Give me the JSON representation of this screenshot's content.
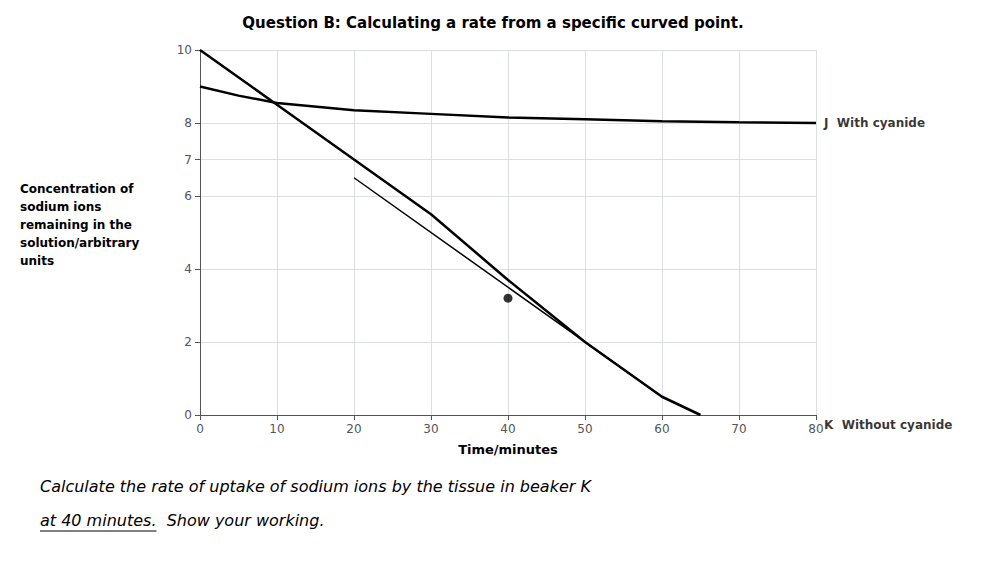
{
  "chart_data": {
    "type": "line",
    "title": "Question B: Calculating a rate from a specific curved point.",
    "ylabel": "Concentration of\nsodium ions\nremaining in the\nsolution/arbitrary\nunits",
    "xlabel": "Time/minutes",
    "xlim": [
      0,
      80
    ],
    "ylim": [
      0,
      10
    ],
    "xticks": [
      0,
      10,
      20,
      30,
      40,
      50,
      60,
      70,
      80
    ],
    "yticks": [
      0,
      2,
      4,
      6,
      7,
      8,
      10
    ],
    "grid": true,
    "series": [
      {
        "type": "line",
        "color": "#000000",
        "x": [
          0,
          5,
          10,
          20,
          30,
          40,
          50,
          60,
          70,
          80
        ],
        "values": [
          9.0,
          8.75,
          8.55,
          8.35,
          8.25,
          8.15,
          8.1,
          8.05,
          8.02,
          8.0
        ]
      },
      {
        "type": "line",
        "color": "#000000",
        "x": [
          0,
          10,
          20,
          30,
          40,
          50,
          60,
          65
        ],
        "values": [
          10.0,
          8.5,
          7.0,
          5.5,
          3.7,
          2.0,
          0.5,
          0.0
        ]
      },
      {
        "type": "line",
        "color": "#000000",
        "x": [
          20,
          60
        ],
        "values": [
          6.5,
          0.5
        ]
      },
      {
        "type": "scatter",
        "marker": "circle",
        "color": "#000000",
        "x": [
          40
        ],
        "values": [
          3.2
        ]
      }
    ],
    "annotations": [
      {
        "text": "J  With cyanide",
        "x": 80,
        "y": 8.0
      },
      {
        "text": "K  Without cyanide",
        "x": 80,
        "y": 0.0
      }
    ],
    "notes": [
      "Calculate the rate of uptake of sodium ions by the tissue in beaker K",
      "at 40 minutes.",
      "  Show your working."
    ]
  }
}
